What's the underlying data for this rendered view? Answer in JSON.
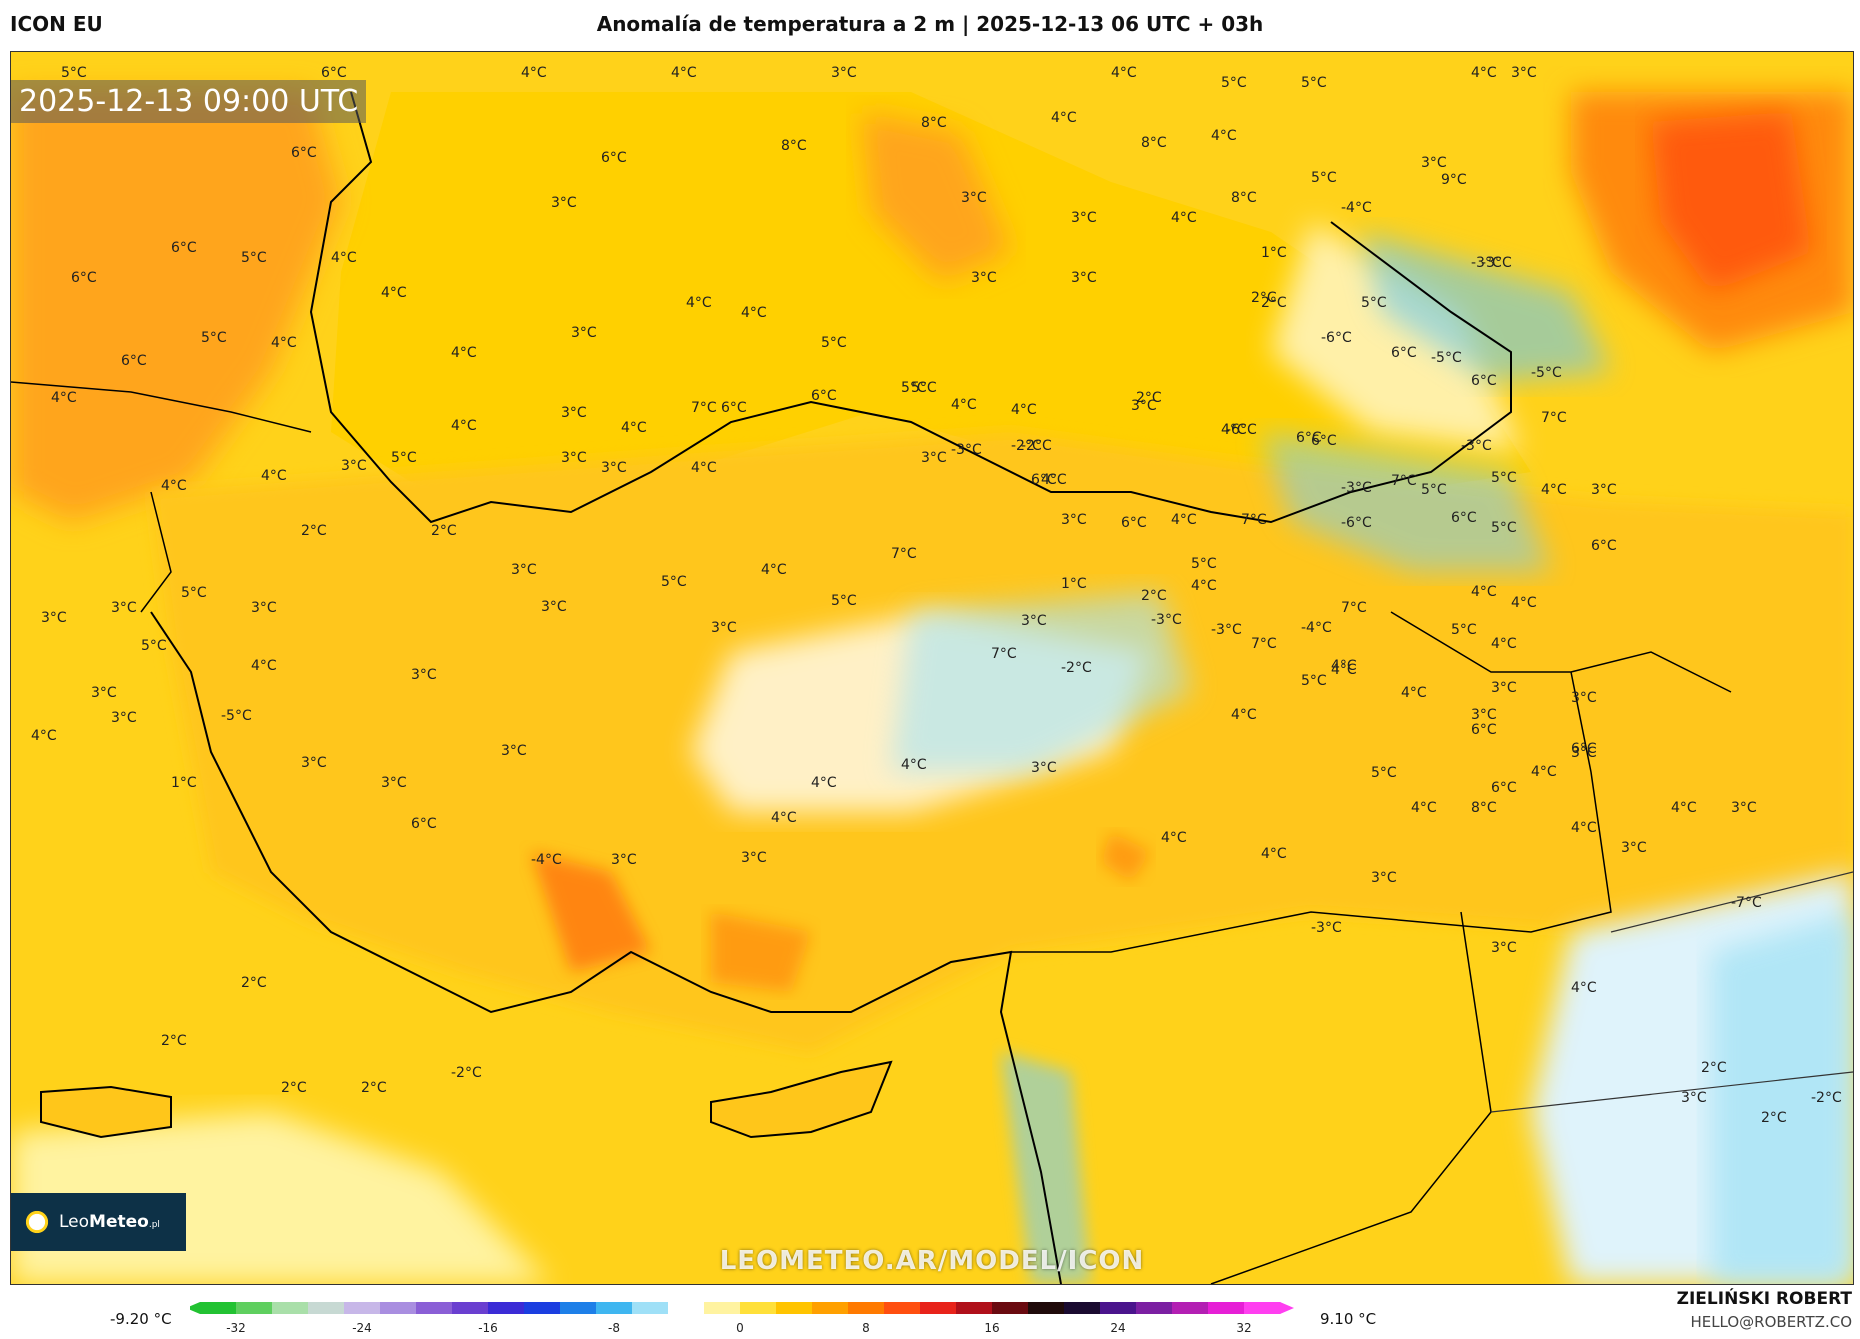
{
  "header": {
    "model": "ICON EU",
    "title": "Anomalía de temperatura a 2 m | 2025-12-13 06 UTC + 03h"
  },
  "map": {
    "timestamp": "2025-12-13 09:00 UTC",
    "watermark": "LEOMETEO.AR/MODEL/ICON",
    "logo_name_light": "Leo",
    "logo_name_bold": "Meteo",
    "logo_suffix": ".pl",
    "labels": [
      "5°C",
      "6°C",
      "4°C",
      "4°C",
      "3°C",
      "4°C",
      "5°C",
      "5°C",
      "4°C",
      "3°C",
      "6°C",
      "6°C",
      "8°C",
      "8°C",
      "4°C",
      "4°C",
      "5°C",
      "3°C",
      "8°C",
      "8°C",
      "9°C",
      "3°C",
      "3°C",
      "4°C",
      "2°C",
      "-3°C",
      "-4°C",
      "6°C",
      "5°C",
      "4°C",
      "4°C",
      "3°C",
      "3°C",
      "3°C",
      "1°C",
      "2°C",
      "-3°C",
      "5°C",
      "6°C",
      "5°C",
      "4°C",
      "4°C",
      "3°C",
      "4°C",
      "4°C",
      "5°C",
      "-6°C",
      "6°C",
      "-5°C",
      "6°C",
      "6°C",
      "4°C",
      "7°C",
      "6°C",
      "5°C",
      "4°C",
      "4°C",
      "2°C",
      "-6°C",
      "6°C",
      "-3°C",
      "-5°C",
      "4°C",
      "4°C",
      "3°C",
      "6°C",
      "5°C",
      "4°C",
      "3°C",
      "-2°C",
      "6°C",
      "7°C",
      "6°C",
      "5°C",
      "7°C",
      "4°C",
      "4°C",
      "3°C",
      "5°C",
      "3°C",
      "-2°C",
      "-3°C",
      "3°C",
      "6°C",
      "7°C",
      "4°C",
      "3°C",
      "5°C",
      "3°C",
      "4°C",
      "4°C",
      "4°C",
      "3°C",
      "-3°C",
      "-6°C",
      "6°C",
      "5°C",
      "7°C",
      "6°C",
      "2°C",
      "2°C",
      "3°C",
      "4°C",
      "5°C",
      "1°C",
      "-3°C",
      "-4°C",
      "4°C",
      "4°C",
      "5°C",
      "3°C",
      "5°C",
      "3°C",
      "3°C",
      "5°C",
      "7°C",
      "3°C",
      "2°C",
      "-3°C",
      "7°C",
      "4°C",
      "5°C",
      "3°C",
      "5°C",
      "4°C",
      "3°C",
      "3°C",
      "5°C",
      "7°C",
      "-2°C",
      "4°C",
      "4°C",
      "4°C",
      "4°C",
      "3°C",
      "4°C",
      "3°C",
      "3°C",
      "6°C",
      "6°C",
      "8°C",
      "6°C",
      "4°C",
      "3°C",
      "4°C",
      "-5°C",
      "3°C",
      "3°C",
      "3°C",
      "6°C",
      "5°C",
      "4°C",
      "3°C",
      "4°C",
      "3°C",
      "1°C",
      "-4°C",
      "3°C",
      "3°C",
      "4°C",
      "4°C",
      "4°C",
      "3°C",
      "4°C",
      "4°C",
      "-3°C",
      "3°C",
      "3°C",
      "4°C",
      "3°C",
      "4°C",
      "-7°C",
      "3°C",
      "3°C",
      "2°C",
      "2°C",
      "-2°C",
      "2°C",
      "2°C",
      "2°C",
      "2°C",
      "-2°C"
    ]
  },
  "legend": {
    "min_label": "-9.20 °C",
    "max_label": "9.10 °C",
    "ticks": [
      "-32",
      "-24",
      "-16",
      "-8",
      "0",
      "8",
      "16",
      "24",
      "32"
    ],
    "colors": [
      "#22c232",
      "#5fcf5f",
      "#a9dfa9",
      "#c7d9d3",
      "#c7b7e8",
      "#a98ee0",
      "#8a5fd6",
      "#6a3fd0",
      "#3b2bd6",
      "#1b3ee0",
      "#1e7fe8",
      "#3fb6f0",
      "#9fe0f7",
      "#ffffff",
      "#fff3a0",
      "#ffe03a",
      "#ffc400",
      "#ffa000",
      "#ff7a00",
      "#ff4f10",
      "#e8231a",
      "#b0101a",
      "#6a0a10",
      "#200a0a",
      "#1a0a30",
      "#4a148c",
      "#7b1fa2",
      "#b31fb3",
      "#e61fd6",
      "#ff3ff0"
    ]
  },
  "author": {
    "name": "ZIELIŃSKI ROBERT",
    "email": "HELLO@ROBERTZ.CO"
  }
}
